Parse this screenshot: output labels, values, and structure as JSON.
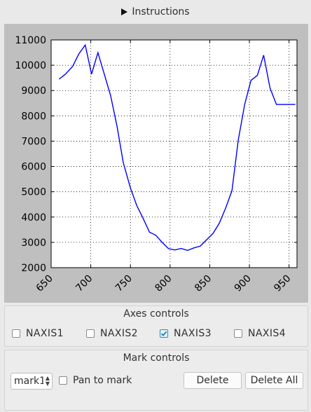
{
  "instructions": {
    "label": "Instructions",
    "icon": "play-triangle-icon"
  },
  "chart_data": {
    "type": "line",
    "title": "",
    "xlabel": "",
    "ylabel": "",
    "xlim": [
      650,
      960
    ],
    "ylim": [
      2000,
      11000
    ],
    "grid": true,
    "line_color": "#0000ff",
    "x_ticks": [
      "650",
      "700",
      "750",
      "800",
      "850",
      "900",
      "950"
    ],
    "y_ticks": [
      "2000",
      "3000",
      "4000",
      "5000",
      "6000",
      "7000",
      "8000",
      "9000",
      "10000",
      "11000"
    ],
    "series": [
      {
        "x": [
          660,
          668,
          677,
          685,
          693,
          701,
          709,
          717,
          725,
          733,
          741,
          750,
          758,
          766,
          774,
          782,
          790,
          798,
          806,
          814,
          822,
          830,
          838,
          846,
          854,
          862,
          870,
          878,
          886,
          894,
          902,
          910,
          918,
          926,
          934,
          942,
          950,
          958
        ],
        "y": [
          9450,
          9650,
          9950,
          10450,
          10800,
          9650,
          10500,
          9650,
          8800,
          7600,
          6150,
          5150,
          4450,
          3950,
          3400,
          3280,
          3000,
          2750,
          2700,
          2760,
          2680,
          2780,
          2850,
          3100,
          3350,
          3750,
          4350,
          5050,
          7050,
          8450,
          9400,
          9600,
          10400,
          9100,
          8450,
          8450,
          8450,
          8450
        ]
      }
    ]
  },
  "axes_controls": {
    "title": "Axes controls",
    "items": [
      {
        "label": "NAXIS1",
        "checked": false
      },
      {
        "label": "NAXIS2",
        "checked": false
      },
      {
        "label": "NAXIS3",
        "checked": true
      },
      {
        "label": "NAXIS4",
        "checked": false
      }
    ]
  },
  "mark_controls": {
    "title": "Mark controls",
    "select_value": "mark1",
    "pan_label": "Pan to mark",
    "delete_label": "Delete",
    "delete_all_label": "Delete All"
  }
}
